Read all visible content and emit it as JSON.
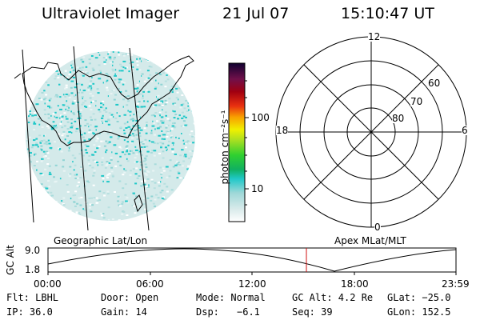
{
  "header": {
    "title": "Ultraviolet Imager",
    "date": "21 Jul 07",
    "time": "15:10:47 UT"
  },
  "colorbar": {
    "unit_label": "photon cm⁻²s⁻¹",
    "ticks": [
      "100",
      "10"
    ]
  },
  "polar_plot": {
    "mlt_labels": [
      "12",
      "18",
      "6",
      "0"
    ],
    "lat_labels": [
      "60",
      "70",
      "80"
    ]
  },
  "panel_labels": {
    "left": "Geographic Lat/Lon",
    "right": "Apex MLat/MLT"
  },
  "altitude_plot": {
    "ylabel": "GC Alt",
    "yticks": [
      "9.0",
      "1.8"
    ],
    "xticks": [
      "00:00",
      "06:00",
      "12:00",
      "18:00",
      "23:59"
    ],
    "current_time_marker": "15:10:47"
  },
  "info": {
    "filter": "Flt: LBHL",
    "door": "Door: Open",
    "mode": "Mode: Normal",
    "gc_alt": "GC Alt: 4.2 Re",
    "glat": "GLat: −25.0",
    "ip": "IP: 36.0",
    "gain": "Gain: 14",
    "dsp_label": "Dsp:",
    "dsp_value": "−6.1",
    "seq": "Seq: 39",
    "glon": "GLon: 152.5"
  },
  "colors": {
    "image_base": "#cfe8e8",
    "speckle": "#1ec8c8",
    "marker": "#d01010"
  }
}
